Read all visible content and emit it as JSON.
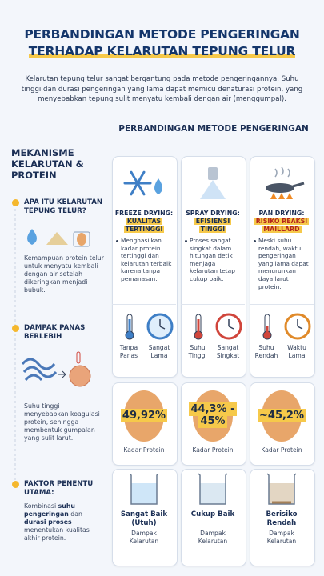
{
  "header": {
    "title_line1": "PERBANDINGAN METODE PENGERINGAN",
    "title_line2": "TERHADAP KELARUTAN TEPUNG TELUR",
    "intro": "Kelarutan tepung telur sangat bergantung pada metode pengeringannya. Suhu tinggi dan durasi pengeringan yang lama dapat memicu denaturasi protein, yang menyebabkan tepung sulit menyatu kembali dengan air (menggumpal)."
  },
  "mechanism": {
    "title": "MEKANISME KELARUTAN & PROTEIN",
    "sections": [
      {
        "heading": "APA ITU KELARUTAN TEPUNG TELUR?",
        "segments": [
          {
            "text": "Kemampuan protein telur untuk menyatu kembali dengan air setelah dikeringkan menjadi bubuk.",
            "bold": false
          }
        ]
      },
      {
        "heading": "DAMPAK PANAS BERLEBIH",
        "segments": [
          {
            "text": "Suhu tinggi menyebabkan koagulasi protein, sehingga membentuk gumpalan yang sulit larut.",
            "bold": false
          }
        ]
      },
      {
        "heading": "FAKTOR PENENTU UTAMA:",
        "segments": [
          {
            "text": "Kombinasi ",
            "bold": false
          },
          {
            "text": "suhu pengeringan",
            "bold": true
          },
          {
            "text": " dan ",
            "bold": false
          },
          {
            "text": "durasi proses",
            "bold": true
          },
          {
            "text": " menentukan kualitas akhir protein.",
            "bold": false
          }
        ]
      }
    ]
  },
  "comparison": {
    "title": "PERBANDINGAN METODE PENGERINGAN",
    "methods": [
      {
        "name": "FREEZE DRYING:",
        "tag": "KUALITAS TERTINGGI",
        "tag_color": "#1b2f55",
        "description": "Menghasilkan kadar protein tertinggi dan kelarutan terbaik karena tanpa pemanasan.",
        "factors": [
          "Tanpa Panas",
          "Sangat Lama"
        ],
        "protein": "49,92%",
        "protein_label": "Kadar Protein",
        "solubility": "Sangat Baik (Utuh)",
        "solubility_label": "Dampak Kelarutan"
      },
      {
        "name": "SPRAY DRYING:",
        "tag": "EFISIENSI TINGGI",
        "tag_color": "#1b2f55",
        "description": "Proses sangat singkat dalam hitungan detik menjaga kelarutan tetap cukup baik.",
        "factors": [
          "Suhu Tinggi",
          "Sangat Singkat"
        ],
        "protein": "44,3% - 45%",
        "protein_label": "Kadar Protein",
        "solubility": "Cukup Baik",
        "solubility_label": "Dampak Kelarutan"
      },
      {
        "name": "PAN DRYING:",
        "tag": "RISIKO REAKSI MAILLARD",
        "tag_color": "#b3261e",
        "description": "Meski suhu rendah, waktu pengeringan yang lama dapat menurunkan daya larut protein.",
        "factors": [
          "Suhu Rendah",
          "Waktu Lama"
        ],
        "protein": "~45,2%",
        "protein_label": "Kadar Protein",
        "solubility": "Berisiko Rendah",
        "solubility_label": "Dampak Kelarutan"
      }
    ]
  }
}
